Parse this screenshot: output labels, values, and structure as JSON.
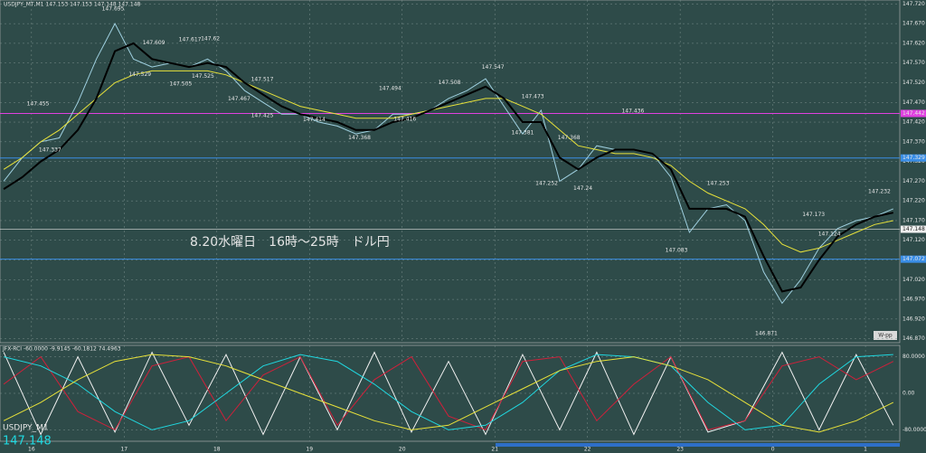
{
  "chart_data": [
    {
      "type": "line",
      "title": "USDJPY_MT,M1  147.153 147.153 147.148 147.148",
      "caption": "8.20水曜日　16時～25時　ドル円",
      "badge": "W-pp",
      "x": [
        15.7,
        15.9,
        16.1,
        16.3,
        16.5,
        16.7,
        16.9,
        17.1,
        17.3,
        17.5,
        17.7,
        17.9,
        18.1,
        18.3,
        18.5,
        18.7,
        18.9,
        19.1,
        19.3,
        19.5,
        19.7,
        19.9,
        20.1,
        20.3,
        20.5,
        20.7,
        20.9,
        21.1,
        21.3,
        21.5,
        21.7,
        21.9,
        22.1,
        22.3,
        22.5,
        22.7,
        22.9,
        23.1,
        23.3,
        23.5,
        23.7,
        23.9,
        24.1,
        24.3,
        24.5,
        24.7,
        24.9,
        25.1,
        25.3
      ],
      "series": [
        {
          "color": "#9fd0e0",
          "values": [
            147.27,
            147.33,
            147.37,
            147.38,
            147.47,
            147.58,
            147.67,
            147.58,
            147.56,
            147.57,
            147.56,
            147.58,
            147.55,
            147.5,
            147.47,
            147.44,
            147.44,
            147.42,
            147.41,
            147.39,
            147.4,
            147.44,
            147.44,
            147.45,
            147.48,
            147.5,
            147.53,
            147.46,
            147.39,
            147.45,
            147.27,
            147.3,
            147.36,
            147.35,
            147.35,
            147.34,
            147.28,
            147.14,
            147.2,
            147.21,
            147.17,
            147.04,
            146.96,
            147.02,
            147.1,
            147.15,
            147.17,
            147.18,
            147.2
          ]
        },
        {
          "color": "#e8e23a",
          "values": [
            147.3,
            147.33,
            147.37,
            147.4,
            147.44,
            147.48,
            147.52,
            147.54,
            147.55,
            147.55,
            147.55,
            147.55,
            147.54,
            147.52,
            147.5,
            147.48,
            147.46,
            147.45,
            147.44,
            147.43,
            147.43,
            147.43,
            147.44,
            147.45,
            147.46,
            147.47,
            147.48,
            147.48,
            147.46,
            147.44,
            147.4,
            147.36,
            147.35,
            147.34,
            147.34,
            147.33,
            147.31,
            147.27,
            147.24,
            147.22,
            147.2,
            147.16,
            147.11,
            147.09,
            147.1,
            147.12,
            147.14,
            147.16,
            147.17
          ]
        },
        {
          "color": "#000000",
          "values": [
            147.25,
            147.28,
            147.32,
            147.35,
            147.4,
            147.48,
            147.6,
            147.62,
            147.58,
            147.57,
            147.56,
            147.57,
            147.56,
            147.52,
            147.49,
            147.46,
            147.44,
            147.43,
            147.42,
            147.4,
            147.4,
            147.42,
            147.43,
            147.45,
            147.47,
            147.49,
            147.51,
            147.48,
            147.42,
            147.42,
            147.33,
            147.3,
            147.33,
            147.35,
            147.35,
            147.34,
            147.3,
            147.2,
            147.2,
            147.2,
            147.18,
            147.08,
            146.99,
            147.0,
            147.07,
            147.13,
            147.16,
            147.18,
            147.19
          ]
        }
      ],
      "annotations": [
        {
          "x": 16.88,
          "value": 147.695
        },
        {
          "x": 17.32,
          "value": 147.609
        },
        {
          "x": 17.71,
          "value": 147.617
        },
        {
          "x": 17.93,
          "value": 147.62
        },
        {
          "x": 17.17,
          "value": 147.529
        },
        {
          "x": 17.61,
          "value": 147.505
        },
        {
          "x": 17.85,
          "value": 147.525
        },
        {
          "x": 16.07,
          "value": 147.455
        },
        {
          "x": 16.2,
          "value": 147.337
        },
        {
          "x": 18.49,
          "value": 147.517
        },
        {
          "x": 18.24,
          "value": 147.467
        },
        {
          "x": 18.49,
          "value": 147.425
        },
        {
          "x": 19.05,
          "value": 147.414
        },
        {
          "x": 19.54,
          "value": 147.368
        },
        {
          "x": 19.87,
          "value": 147.494
        },
        {
          "x": 20.03,
          "value": 147.416
        },
        {
          "x": 20.51,
          "value": 147.508
        },
        {
          "x": 20.98,
          "value": 147.547
        },
        {
          "x": 21.41,
          "value": 147.473
        },
        {
          "x": 21.3,
          "value": 147.381
        },
        {
          "x": 21.8,
          "value": 147.368
        },
        {
          "x": 21.56,
          "value": 147.252
        },
        {
          "x": 21.95,
          "value": 147.24
        },
        {
          "x": 22.49,
          "value": 147.436
        },
        {
          "x": 23.41,
          "value": 147.253
        },
        {
          "x": 22.96,
          "value": 147.083
        },
        {
          "x": 23.93,
          "value": 146.871
        },
        {
          "x": 24.44,
          "value": 147.173
        },
        {
          "x": 24.61,
          "value": 147.124
        },
        {
          "x": 25.15,
          "value": 147.232
        }
      ],
      "levels": [
        {
          "value": 147.442,
          "color": "#e040e0"
        },
        {
          "value": 147.329,
          "color": "#3a8ee6"
        },
        {
          "value": 147.072,
          "color": "#3a8ee6"
        }
      ],
      "last_price": 147.148,
      "xlim": [
        15.66,
        25.37
      ],
      "xticks": [
        16,
        17,
        18,
        19,
        20,
        21,
        22,
        23,
        {
          "value": 24,
          "label": "0"
        },
        {
          "value": 25,
          "label": "1"
        }
      ],
      "ylim": [
        146.86,
        147.73
      ],
      "yticks": [
        {
          "value": 147.72,
          "label": "147.720"
        },
        {
          "value": 147.67,
          "label": "147.670"
        },
        {
          "value": 147.62,
          "label": "147.620"
        },
        {
          "value": 147.57,
          "label": "147.570"
        },
        {
          "value": 147.52,
          "label": "147.520"
        },
        {
          "value": 147.47,
          "label": "147.470"
        },
        {
          "value": 147.42,
          "label": "147.420"
        },
        {
          "value": 147.37,
          "label": "147.370"
        },
        {
          "value": 147.32,
          "label": "147.320"
        },
        {
          "value": 147.27,
          "label": "147.270"
        },
        {
          "value": 147.22,
          "label": "147.220"
        },
        {
          "value": 147.17,
          "label": "147.170"
        },
        {
          "value": 147.12,
          "label": "147.120"
        },
        {
          "value": 147.07,
          "label": "147.070"
        },
        {
          "value": 147.02,
          "label": "147.020"
        },
        {
          "value": 146.97,
          "label": "146.970"
        },
        {
          "value": 146.92,
          "label": "146.920"
        },
        {
          "value": 146.87,
          "label": "146.870"
        }
      ],
      "grid": true
    },
    {
      "type": "line",
      "title": "JFX-RCI -60.0000 -9.9145 -60.1812 74.4963",
      "symbol": "USDJPY_M1",
      "x": [
        15.7,
        16.1,
        16.5,
        16.9,
        17.3,
        17.7,
        18.1,
        18.5,
        18.9,
        19.3,
        19.7,
        20.1,
        20.5,
        20.9,
        21.3,
        21.7,
        22.1,
        22.5,
        22.9,
        23.3,
        23.7,
        24.1,
        24.5,
        24.9,
        25.3
      ],
      "series": [
        {
          "color": "#f0f0f0",
          "values": [
            90,
            -90,
            80,
            -85,
            90,
            -70,
            85,
            -90,
            80,
            -80,
            90,
            -85,
            70,
            -90,
            85,
            -80,
            90,
            -90,
            80,
            -85,
            -60,
            90,
            -80,
            85,
            -70
          ]
        },
        {
          "color": "#d0203a",
          "values": [
            20,
            80,
            -40,
            -80,
            60,
            80,
            -60,
            40,
            80,
            -70,
            30,
            80,
            -50,
            -80,
            70,
            80,
            -60,
            20,
            80,
            -80,
            -60,
            60,
            80,
            30,
            70
          ]
        },
        {
          "color": "#20d8e0",
          "values": [
            80,
            60,
            20,
            -40,
            -80,
            -60,
            0,
            60,
            85,
            70,
            20,
            -40,
            -80,
            -70,
            -20,
            50,
            85,
            80,
            60,
            -20,
            -80,
            -70,
            20,
            80,
            85
          ]
        },
        {
          "color": "#e8e23a",
          "values": [
            -60,
            -20,
            30,
            70,
            85,
            80,
            60,
            30,
            0,
            -30,
            -60,
            -80,
            -70,
            -30,
            10,
            50,
            70,
            80,
            60,
            30,
            -20,
            -70,
            -85,
            -60,
            -20
          ]
        }
      ],
      "xlim": [
        15.66,
        25.37
      ],
      "ylim": [
        -105,
        105
      ],
      "yticks": [
        {
          "value": 80,
          "label": "80.0000"
        },
        {
          "value": 0,
          "label": "0.00"
        },
        {
          "value": -80,
          "label": "-80.0000"
        }
      ],
      "grid": true
    }
  ]
}
